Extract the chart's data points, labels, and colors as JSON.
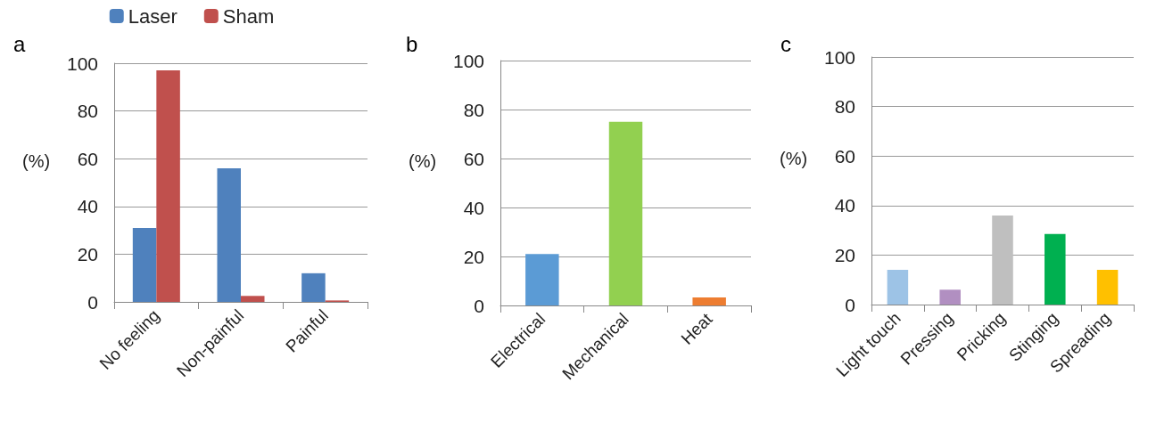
{
  "chart_data": [
    {
      "type": "bar",
      "title": "a",
      "ylabel": "(%)",
      "categories": [
        "No feeling",
        "Non-painful",
        "Painful"
      ],
      "series": [
        {
          "name": "Laser",
          "color": "#4f81bd",
          "values": [
            31,
            56,
            12
          ]
        },
        {
          "name": "Sham",
          "color": "#c0504d",
          "values": [
            97,
            2.5,
            0.6
          ]
        }
      ],
      "ylim": [
        0,
        100
      ],
      "yticks": [
        0,
        20,
        40,
        60,
        80,
        100
      ],
      "grid": "y",
      "legend": "top"
    },
    {
      "type": "bar",
      "title": "b",
      "ylabel": "(%)",
      "categories": [
        "Electrical",
        "Mechanical",
        "Heat"
      ],
      "values": [
        21,
        75,
        3.3
      ],
      "colors": [
        "#5b9bd5",
        "#92d050",
        "#ed7d31"
      ],
      "ylim": [
        0,
        100
      ],
      "yticks": [
        0,
        20,
        40,
        60,
        80,
        100
      ],
      "grid": "y"
    },
    {
      "type": "bar",
      "title": "c",
      "ylabel": "(%)",
      "categories": [
        "Light touch",
        "Pressing",
        "Pricking",
        "Stinging",
        "Spreading"
      ],
      "values": [
        14,
        6,
        36,
        28.5,
        14
      ],
      "colors": [
        "#9dc3e6",
        "#b18fc1",
        "#bfbfbf",
        "#00b050",
        "#ffc000"
      ],
      "ylim": [
        0,
        100
      ],
      "yticks": [
        0,
        20,
        40,
        60,
        80,
        100
      ],
      "grid": "y"
    }
  ]
}
